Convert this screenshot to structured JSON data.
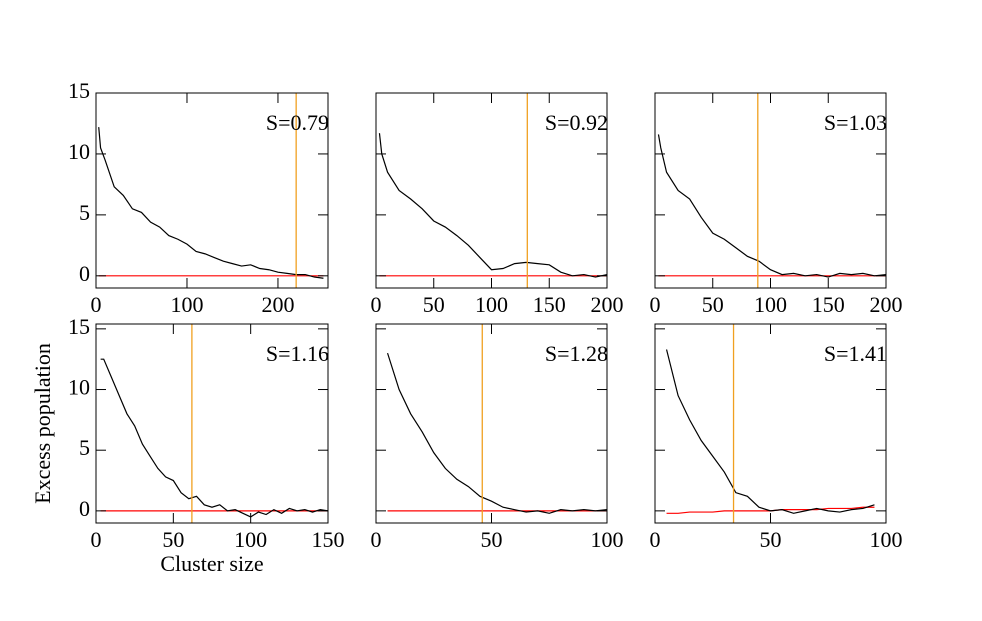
{
  "chart_data": [
    {
      "type": "line",
      "annotation": "S=0.79",
      "xlim": [
        0,
        255
      ],
      "ylim": [
        -1,
        15
      ],
      "xticks": [
        0,
        100,
        200
      ],
      "yticks": [
        0,
        5,
        10,
        15
      ],
      "show_ytick_labels": true,
      "vline": {
        "value": 220,
        "color": "#f0a020"
      },
      "x": [
        3,
        5,
        10,
        20,
        30,
        40,
        50,
        60,
        70,
        80,
        90,
        100,
        110,
        120,
        130,
        140,
        150,
        160,
        170,
        180,
        190,
        200,
        210,
        220,
        230,
        240,
        250
      ],
      "series": [
        {
          "color": "#000000",
          "values": [
            12.2,
            10.5,
            9.5,
            7.3,
            6.6,
            5.5,
            5.2,
            4.4,
            4,
            3.3,
            3,
            2.6,
            2,
            1.8,
            1.5,
            1.2,
            1,
            0.8,
            0.9,
            0.6,
            0.5,
            0.3,
            0.2,
            0.1,
            0.1,
            -0.1,
            -0.2
          ]
        },
        {
          "color": "#ff0000",
          "values": [
            0,
            0,
            0,
            0,
            0,
            0,
            0,
            0,
            0,
            0,
            0,
            0,
            0,
            0,
            0,
            0,
            0,
            0,
            0,
            0,
            0,
            0,
            0,
            0,
            0,
            0,
            0
          ]
        }
      ]
    },
    {
      "type": "line",
      "annotation": "S=0.92",
      "xlim": [
        0,
        200
      ],
      "ylim": [
        -1,
        15
      ],
      "xticks": [
        0,
        50,
        100,
        150,
        200
      ],
      "yticks": [
        0,
        5,
        10,
        15
      ],
      "show_ytick_labels": false,
      "vline": {
        "value": 131,
        "color": "#f0a020"
      },
      "x": [
        3,
        5,
        10,
        20,
        30,
        40,
        50,
        60,
        70,
        80,
        90,
        100,
        110,
        120,
        130,
        140,
        150,
        160,
        170,
        180,
        190,
        200
      ],
      "series": [
        {
          "color": "#000000",
          "values": [
            11.7,
            10,
            8.5,
            7,
            6.3,
            5.5,
            4.5,
            4,
            3.3,
            2.5,
            1.5,
            0.5,
            0.6,
            1,
            1.1,
            1,
            0.9,
            0.3,
            0,
            0.1,
            -0.1,
            0.1
          ]
        },
        {
          "color": "#ff0000",
          "values": [
            0,
            0,
            0,
            0,
            0,
            0,
            0,
            0,
            0,
            0,
            0,
            0,
            0,
            0,
            0,
            0,
            0,
            0,
            0,
            0,
            0,
            0
          ]
        }
      ]
    },
    {
      "type": "line",
      "annotation": "S=1.03",
      "xlim": [
        0,
        200
      ],
      "ylim": [
        -1,
        15
      ],
      "xticks": [
        0,
        50,
        100,
        150,
        200
      ],
      "yticks": [
        0,
        5,
        10,
        15
      ],
      "show_ytick_labels": false,
      "vline": {
        "value": 89,
        "color": "#f0a020"
      },
      "x": [
        3,
        5,
        10,
        20,
        30,
        40,
        50,
        60,
        70,
        80,
        90,
        100,
        110,
        120,
        130,
        140,
        150,
        160,
        170,
        180,
        190,
        200
      ],
      "series": [
        {
          "color": "#000000",
          "values": [
            11.6,
            10.5,
            8.5,
            7,
            6.3,
            4.8,
            3.5,
            3,
            2.3,
            1.6,
            1.2,
            0.5,
            0.1,
            0.2,
            0,
            0.1,
            -0.1,
            0.2,
            0.1,
            0.2,
            0,
            0.1
          ]
        },
        {
          "color": "#ff0000",
          "values": [
            0,
            0,
            0,
            0,
            0,
            0,
            0,
            0,
            0,
            0,
            0,
            0,
            0,
            0,
            0,
            0,
            0,
            0,
            0,
            0,
            0,
            0
          ]
        }
      ]
    },
    {
      "type": "line",
      "annotation": "S=1.16",
      "xlabel": "Cluster size",
      "ylabel": "Excess population",
      "xlim": [
        0,
        150
      ],
      "ylim": [
        -1,
        15.4
      ],
      "xticks": [
        0,
        50,
        100,
        150
      ],
      "yticks": [
        0,
        5,
        10,
        15
      ],
      "show_ytick_labels": true,
      "vline": {
        "value": 62,
        "color": "#f0a020"
      },
      "x": [
        3,
        5,
        10,
        15,
        20,
        25,
        30,
        35,
        40,
        45,
        50,
        55,
        60,
        65,
        70,
        75,
        80,
        85,
        90,
        95,
        100,
        105,
        110,
        115,
        120,
        125,
        130,
        135,
        140,
        145,
        150
      ],
      "series": [
        {
          "color": "#000000",
          "values": [
            12.5,
            12.5,
            11,
            9.5,
            8,
            7,
            5.5,
            4.5,
            3.5,
            2.8,
            2.5,
            1.5,
            1,
            1.2,
            0.5,
            0.3,
            0.5,
            0,
            0.1,
            -0.2,
            -0.5,
            -0.1,
            -0.3,
            0.1,
            -0.2,
            0.2,
            0,
            0.1,
            -0.1,
            0.1,
            0
          ]
        },
        {
          "color": "#ff0000",
          "values": [
            0,
            0,
            0,
            0,
            0,
            0,
            0,
            0,
            0,
            0,
            0,
            0,
            0,
            0,
            0,
            0,
            0,
            0,
            0,
            0,
            0,
            0,
            0,
            0,
            0,
            0,
            0,
            0,
            0,
            0,
            0
          ]
        }
      ]
    },
    {
      "type": "line",
      "annotation": "S=1.28",
      "xlim": [
        0,
        100
      ],
      "ylim": [
        -1,
        15.4
      ],
      "xticks": [
        0,
        50,
        100
      ],
      "yticks": [
        0,
        5,
        10,
        15
      ],
      "show_ytick_labels": false,
      "vline": {
        "value": 46,
        "color": "#f0a020"
      },
      "x": [
        5,
        10,
        15,
        20,
        25,
        30,
        35,
        40,
        45,
        50,
        55,
        60,
        65,
        70,
        75,
        80,
        85,
        90,
        95,
        100
      ],
      "series": [
        {
          "color": "#000000",
          "values": [
            13,
            10,
            8,
            6.5,
            4.8,
            3.5,
            2.6,
            2,
            1.2,
            0.8,
            0.3,
            0.1,
            -0.1,
            0,
            -0.2,
            0.1,
            0,
            0.1,
            0,
            0.1
          ]
        },
        {
          "color": "#ff0000",
          "values": [
            0,
            0,
            0,
            0,
            0,
            0,
            0,
            0,
            0,
            0,
            0,
            0,
            0,
            0,
            0,
            0,
            0,
            0,
            0,
            0
          ]
        }
      ]
    },
    {
      "type": "line",
      "annotation": "S=1.41",
      "xlim": [
        0,
        100
      ],
      "ylim": [
        -1,
        15.4
      ],
      "xticks": [
        0,
        50,
        100
      ],
      "yticks": [
        0,
        5,
        10,
        15
      ],
      "show_ytick_labels": false,
      "vline": {
        "value": 34,
        "color": "#f0a020"
      },
      "x": [
        5,
        10,
        15,
        20,
        25,
        30,
        35,
        40,
        45,
        50,
        55,
        60,
        65,
        70,
        75,
        80,
        85,
        90,
        95
      ],
      "series": [
        {
          "color": "#000000",
          "values": [
            13.3,
            9.5,
            7.5,
            5.8,
            4.5,
            3.2,
            1.5,
            1.2,
            0.3,
            0,
            0.1,
            -0.2,
            0,
            0.2,
            0,
            -0.1,
            0.1,
            0.2,
            0.5
          ]
        },
        {
          "color": "#ff0000",
          "values": [
            -0.2,
            -0.2,
            -0.1,
            -0.1,
            -0.1,
            0,
            0,
            0,
            0,
            0,
            0.1,
            0.1,
            0.1,
            0.1,
            0.2,
            0.2,
            0.2,
            0.3,
            0.3
          ]
        }
      ]
    }
  ]
}
